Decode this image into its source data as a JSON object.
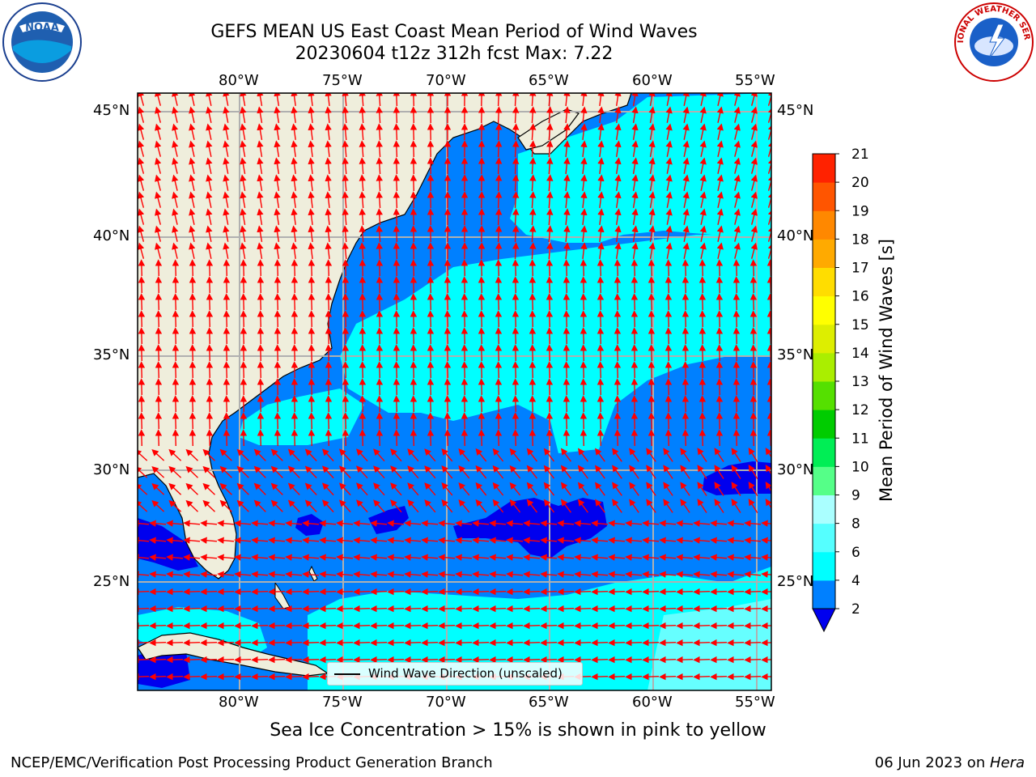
{
  "title": {
    "line1": "GEFS MEAN US East Coast Mean Period of Wind Waves",
    "line2": "20230604 t12z 312h fcst   Max: 7.22"
  },
  "logos": {
    "left": "NOAA",
    "right": "NATIONAL WEATHER SERVICE"
  },
  "colors": {
    "land": "#efeedc",
    "band_2_4": "#0080ff",
    "band_4_6": "#00ffff",
    "band_below_2": "#0000ee",
    "arrow": "#ff0000",
    "grid": "#b0b0b0"
  },
  "map": {
    "lon_labels": [
      "80°W",
      "75°W",
      "70°W",
      "65°W",
      "60°W",
      "55°W"
    ],
    "lat_labels": [
      "45°N",
      "40°N",
      "35°N",
      "30°N",
      "25°N"
    ],
    "legend_label": "Wind Wave Direction (unscaled)"
  },
  "colorbar": {
    "label": "Mean Period of Wind Waves [s]",
    "ticks": [
      "2",
      "4",
      "6",
      "8",
      "9",
      "10",
      "11",
      "12",
      "13",
      "14",
      "15",
      "16",
      "17",
      "18",
      "19",
      "20",
      "21"
    ],
    "colors": [
      "#0080ff",
      "#00ffff",
      "#55ffff",
      "#aaffff",
      "#55ff88",
      "#00ee55",
      "#00cc00",
      "#55e000",
      "#aaee00",
      "#ddee00",
      "#ffff00",
      "#ffdd00",
      "#ffaa00",
      "#ff8800",
      "#ff5500",
      "#ff2200",
      "#ff0000"
    ],
    "under_color": "#0000ee"
  },
  "notes": {
    "sea_ice": "Sea Ice Concentration > 15% is shown in pink to yellow",
    "branch": "NCEP/EMC/Verification Post Processing Product Generation Branch",
    "date": "06 Jun 2023 on ",
    "host": "Hera"
  }
}
